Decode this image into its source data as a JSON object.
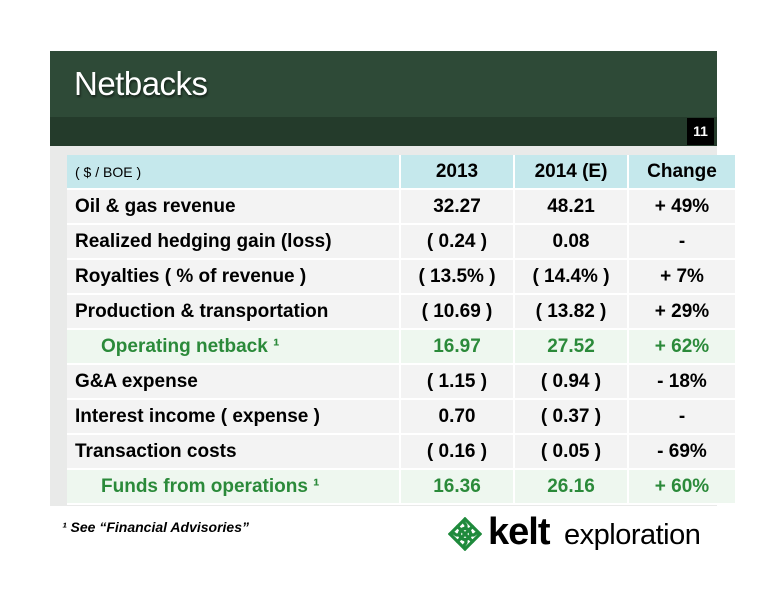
{
  "slide": {
    "title": "Netbacks",
    "page_number": "11"
  },
  "table": {
    "header": {
      "label": "( $ / BOE )",
      "col1": "2013",
      "col2": "2014 (E)",
      "col3": "Change"
    },
    "rows": [
      {
        "label": "Oil & gas revenue",
        "v2013": "32.27",
        "v2014": "48.21",
        "change": "+ 49%",
        "highlight": false
      },
      {
        "label": "Realized hedging gain (loss)",
        "v2013": "( 0.24 )",
        "v2014": "0.08",
        "change": "-",
        "highlight": false
      },
      {
        "label": "Royalties ( % of revenue )",
        "v2013": "( 13.5% )",
        "v2014": "( 14.4% )",
        "change": "+ 7%",
        "highlight": false
      },
      {
        "label": "Production & transportation",
        "v2013": "( 10.69 )",
        "v2014": "( 13.82 )",
        "change": "+ 29%",
        "highlight": false
      },
      {
        "label": "Operating netback ¹",
        "v2013": "16.97",
        "v2014": "27.52",
        "change": "+ 62%",
        "highlight": true
      },
      {
        "label": "G&A expense",
        "v2013": "( 1.15 )",
        "v2014": "( 0.94 )",
        "change": "- 18%",
        "highlight": false
      },
      {
        "label": "Interest income ( expense )",
        "v2013": "0.70",
        "v2014": "( 0.37 )",
        "change": "-",
        "highlight": false
      },
      {
        "label": "Transaction costs",
        "v2013": "( 0.16 )",
        "v2014": "( 0.05 )",
        "change": "- 69%",
        "highlight": false
      },
      {
        "label": "Funds from operations ¹",
        "v2013": "16.36",
        "v2014": "26.16",
        "change": "+ 60%",
        "highlight": true
      }
    ]
  },
  "footnote": "¹ See “Financial Advisories”",
  "logo": {
    "name": "kelt",
    "tagline": "exploration",
    "icon": "celtic-knot-icon"
  },
  "colors": {
    "header_green": "#2e4a37",
    "highlight_green": "#2b8a3a",
    "table_header": "#c5e8ec"
  }
}
